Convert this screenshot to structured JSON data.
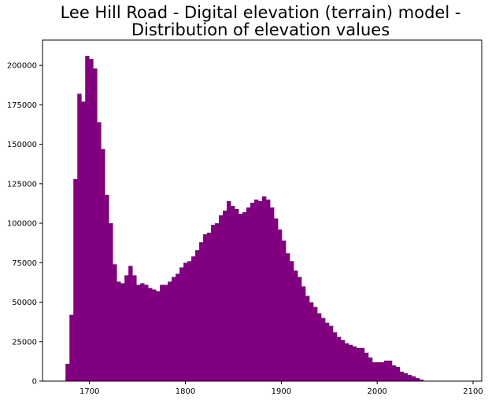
{
  "chart_data": {
    "type": "bar",
    "subtype": "histogram",
    "title_lines": [
      "Lee Hill Road - Digital elevation (terrain) model -",
      "Distribution of elevation values"
    ],
    "xlabel": "",
    "ylabel": "",
    "xlim": [
      1651,
      2109
    ],
    "ylim": [
      0,
      216000
    ],
    "x_ticks": [
      1700,
      1800,
      1900,
      2000,
      2100
    ],
    "y_ticks": [
      0,
      25000,
      50000,
      75000,
      100000,
      125000,
      150000,
      175000,
      200000
    ],
    "grid": false,
    "bar_color": "#800080",
    "bin_start": 1675,
    "bin_width": 4.1,
    "counts": [
      11000,
      42000,
      128000,
      182000,
      177000,
      206000,
      204000,
      198000,
      164000,
      147000,
      118000,
      100000,
      74000,
      63000,
      62000,
      67000,
      73000,
      67000,
      61000,
      62000,
      61000,
      59000,
      58000,
      57000,
      61000,
      61000,
      63000,
      66000,
      68000,
      72000,
      75000,
      76000,
      79000,
      83000,
      88000,
      93000,
      94000,
      99000,
      100000,
      105000,
      108000,
      114000,
      111000,
      109000,
      106000,
      107000,
      110000,
      113000,
      115000,
      114000,
      117000,
      115000,
      110000,
      103000,
      96000,
      89000,
      81000,
      76000,
      70000,
      66000,
      60000,
      54000,
      50000,
      47000,
      43000,
      40000,
      37000,
      35000,
      31000,
      28000,
      26000,
      24000,
      23000,
      22000,
      21000,
      21000,
      18000,
      15000,
      12000,
      12000,
      12000,
      13000,
      13000,
      10000,
      9000,
      6000,
      5000,
      4000,
      3000,
      2000,
      1000
    ]
  }
}
